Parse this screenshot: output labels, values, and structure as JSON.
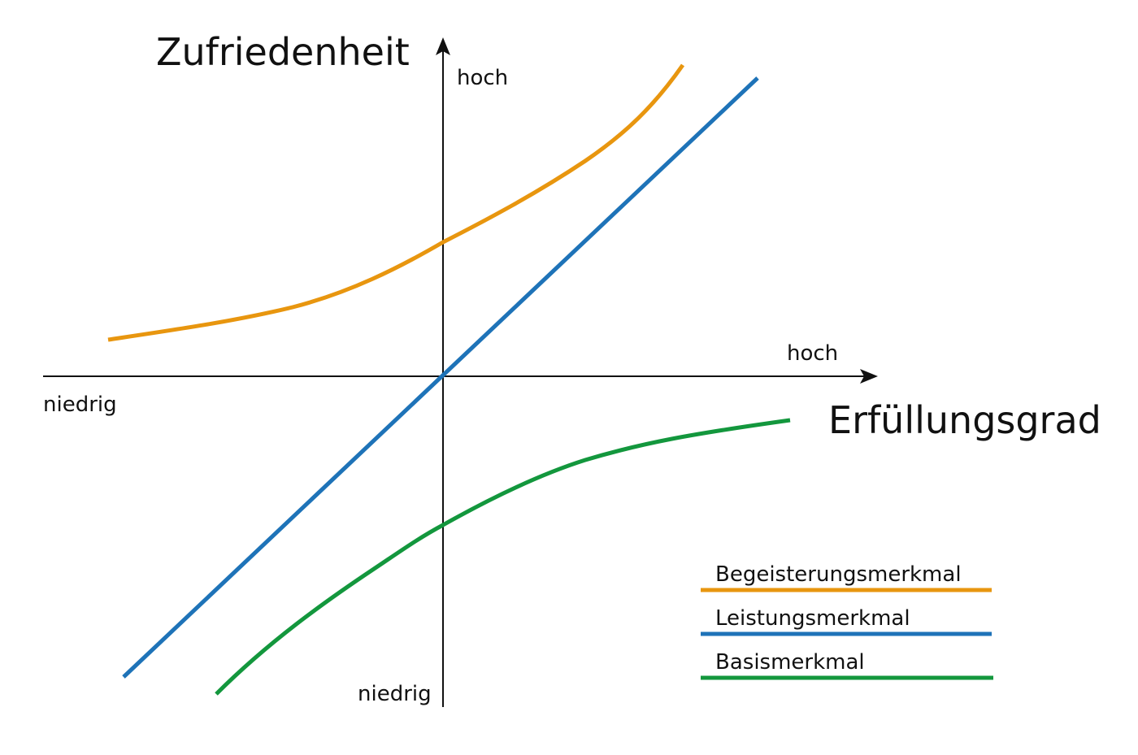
{
  "y_axis": {
    "title": "Zufriedenheit",
    "high_label": "hoch",
    "low_label": "niedrig"
  },
  "x_axis": {
    "title": "Erfüllungsgrad",
    "high_label": "hoch",
    "low_label": "niedrig"
  },
  "curves": [
    {
      "name": "Begeisterungsmerkmal",
      "color": "#e8960f"
    },
    {
      "name": "Leistungsmerkmal",
      "color": "#1e73b8"
    },
    {
      "name": "Basismerkmal",
      "color": "#13973d"
    }
  ],
  "legend": {
    "placement": "bottom-right",
    "items": [
      {
        "label": "Begeisterungsmerkmal",
        "color": "#e8960f"
      },
      {
        "label": "Leistungsmerkmal",
        "color": "#1e73b8"
      },
      {
        "label": "Basismerkmal",
        "color": "#13973d"
      }
    ]
  }
}
